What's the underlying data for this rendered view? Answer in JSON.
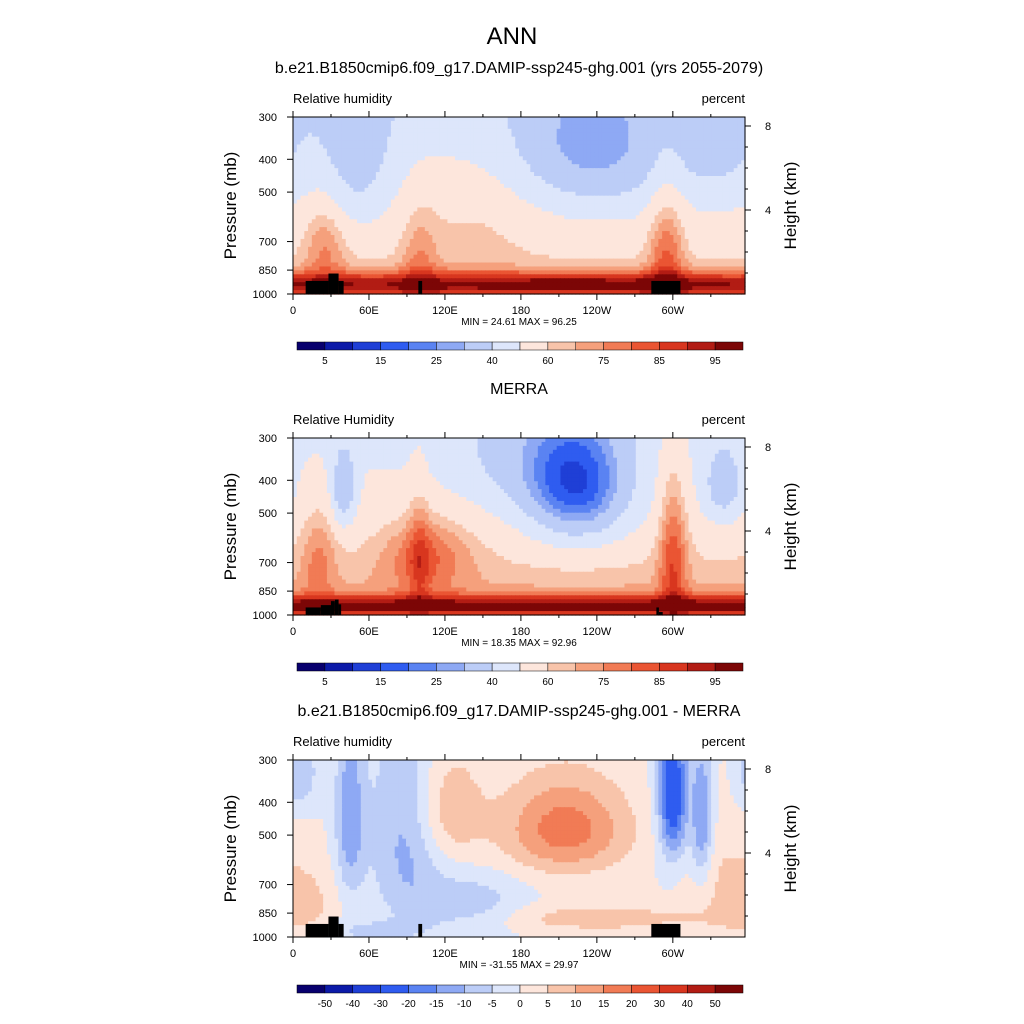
{
  "page": {
    "title": "ANN"
  },
  "chart_data": [
    {
      "type": "heatmap",
      "title": "b.e21.B1850cmip6.f09_g17.DAMIP-ssp245-ghg.001 (yrs 2055-2079)",
      "left_string": "Relative humidity",
      "right_string": "percent",
      "ylabel": "Pressure (mb)",
      "y2label": "Height (km)",
      "xticks": [
        "0",
        "60E",
        "120E",
        "180",
        "120W",
        "60W"
      ],
      "yticks": [
        "300",
        "400",
        "500",
        "700",
        "850",
        "1000"
      ],
      "y2ticks": [
        "8",
        "4"
      ],
      "stats": "MIN =  24.61  MAX =  96.25",
      "min": 24.61,
      "max": 96.25,
      "variant": "model",
      "colorbar_labels": [
        "5",
        "15",
        "25",
        "40",
        "60",
        "75",
        "85",
        "95"
      ]
    },
    {
      "type": "heatmap",
      "title": "MERRA",
      "left_string": "Relative Humidity",
      "right_string": "percent",
      "ylabel": "Pressure (mb)",
      "y2label": "Height (km)",
      "xticks": [
        "0",
        "60E",
        "120E",
        "180",
        "120W",
        "60W"
      ],
      "yticks": [
        "300",
        "400",
        "500",
        "700",
        "850",
        "1000"
      ],
      "y2ticks": [
        "8",
        "4"
      ],
      "stats": "MIN =  18.35  MAX =  92.96",
      "min": 18.35,
      "max": 92.96,
      "variant": "obs",
      "colorbar_labels": [
        "5",
        "15",
        "25",
        "40",
        "60",
        "75",
        "85",
        "95"
      ]
    },
    {
      "type": "heatmap",
      "title": "b.e21.B1850cmip6.f09_g17.DAMIP-ssp245-ghg.001 - MERRA",
      "left_string": "Relative humidity",
      "right_string": "percent",
      "ylabel": "Pressure (mb)",
      "y2label": "Height (km)",
      "xticks": [
        "0",
        "60E",
        "120E",
        "180",
        "120W",
        "60W"
      ],
      "yticks": [
        "300",
        "400",
        "500",
        "700",
        "850",
        "1000"
      ],
      "y2ticks": [
        "8",
        "4"
      ],
      "stats": "MIN = -31.55  MAX =  29.97",
      "min": -31.55,
      "max": 29.97,
      "variant": "diff",
      "colorbar_labels": [
        "-50",
        "-40",
        "-30",
        "-20",
        "-15",
        "-10",
        "-5",
        "0",
        "5",
        "10",
        "15",
        "20",
        "30",
        "40",
        "50"
      ]
    }
  ],
  "colors": {
    "palette": [
      "#08006e",
      "#0c1aa8",
      "#1f3fd6",
      "#2f5cf0",
      "#5a83f2",
      "#8ea9f4",
      "#bccdf7",
      "#dde6fb",
      "#fde6dc",
      "#f8c4aa",
      "#f5a07c",
      "#f17b55",
      "#ea5533",
      "#d8361f",
      "#b21c14",
      "#7c0606"
    ],
    "topography": "#000000"
  }
}
